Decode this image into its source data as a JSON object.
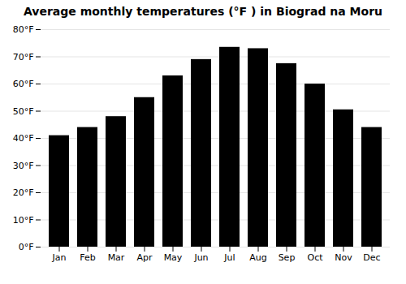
{
  "chart_data": {
    "type": "bar",
    "title": "Average monthly temperatures (°F ) in Biograd na Moru",
    "categories": [
      "Jan",
      "Feb",
      "Mar",
      "Apr",
      "May",
      "Jun",
      "Jul",
      "Aug",
      "Sep",
      "Oct",
      "Nov",
      "Dec"
    ],
    "values": [
      41,
      44,
      48,
      55,
      63,
      69,
      73.5,
      73,
      67.5,
      60,
      50.5,
      44
    ],
    "ylim": [
      0,
      80
    ],
    "yticks": [
      {
        "value": 0,
        "label": "0°F"
      },
      {
        "value": 10,
        "label": "10°F"
      },
      {
        "value": 20,
        "label": "20°F"
      },
      {
        "value": 30,
        "label": "30°F"
      },
      {
        "value": 40,
        "label": "40°F"
      },
      {
        "value": 50,
        "label": "50°F"
      },
      {
        "value": 60,
        "label": "60°F"
      },
      {
        "value": 70,
        "label": "70°F"
      },
      {
        "value": 80,
        "label": "80°F"
      }
    ],
    "grid": true
  }
}
